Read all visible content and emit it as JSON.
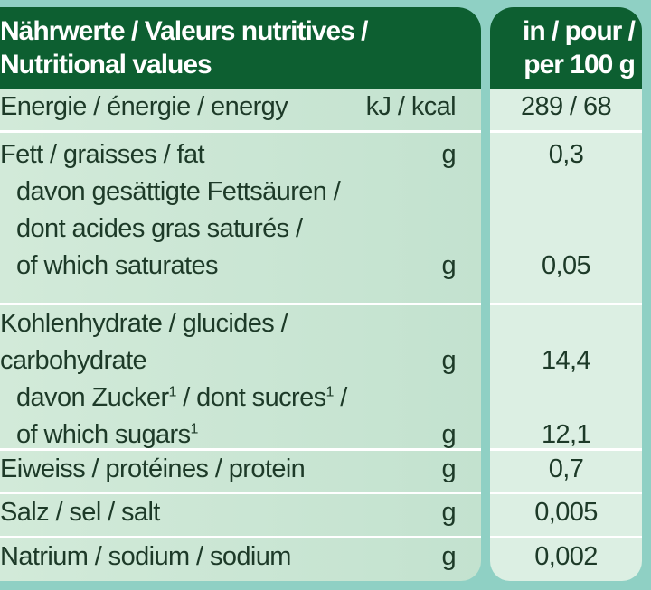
{
  "header": {
    "title_line1": "Nährwerte / Valeurs nutritives /",
    "title_line2": "Nutritional values",
    "per_line1": "in / pour /",
    "per_line2": "per 100 g"
  },
  "rows": [
    {
      "label": "Energie / énergie / energy",
      "unit": "kJ / kcal",
      "value": "289 / 68"
    },
    {
      "label": "Fett / graisses / fat",
      "unit": "g",
      "value": "0,3",
      "sub_label1": "davon gesättigte Fettsäuren /",
      "sub_label2": "dont acides gras saturés /",
      "sub_label3": "of which saturates",
      "sub_unit": "g",
      "sub_value": "0,05"
    },
    {
      "label1": "Kohlenhydrate / glucides /",
      "label2": "carbohydrate",
      "unit": "g",
      "value": "14,4",
      "sub_label1a": "davon Zucker",
      "sup": "1",
      "sub_label1b": " / dont sucres",
      "sub_label1c": " /",
      "sub_label2": "of which sugars",
      "sub_unit": "g",
      "sub_value": "12,1"
    },
    {
      "label": "Eiweiss / protéines / protein",
      "unit": "g",
      "value": "0,7"
    },
    {
      "label": "Salz / sel / salt",
      "unit": "g",
      "value": "0,005"
    },
    {
      "label": "Natrium / sodium / sodium",
      "unit": "g",
      "value": "0,002"
    }
  ]
}
